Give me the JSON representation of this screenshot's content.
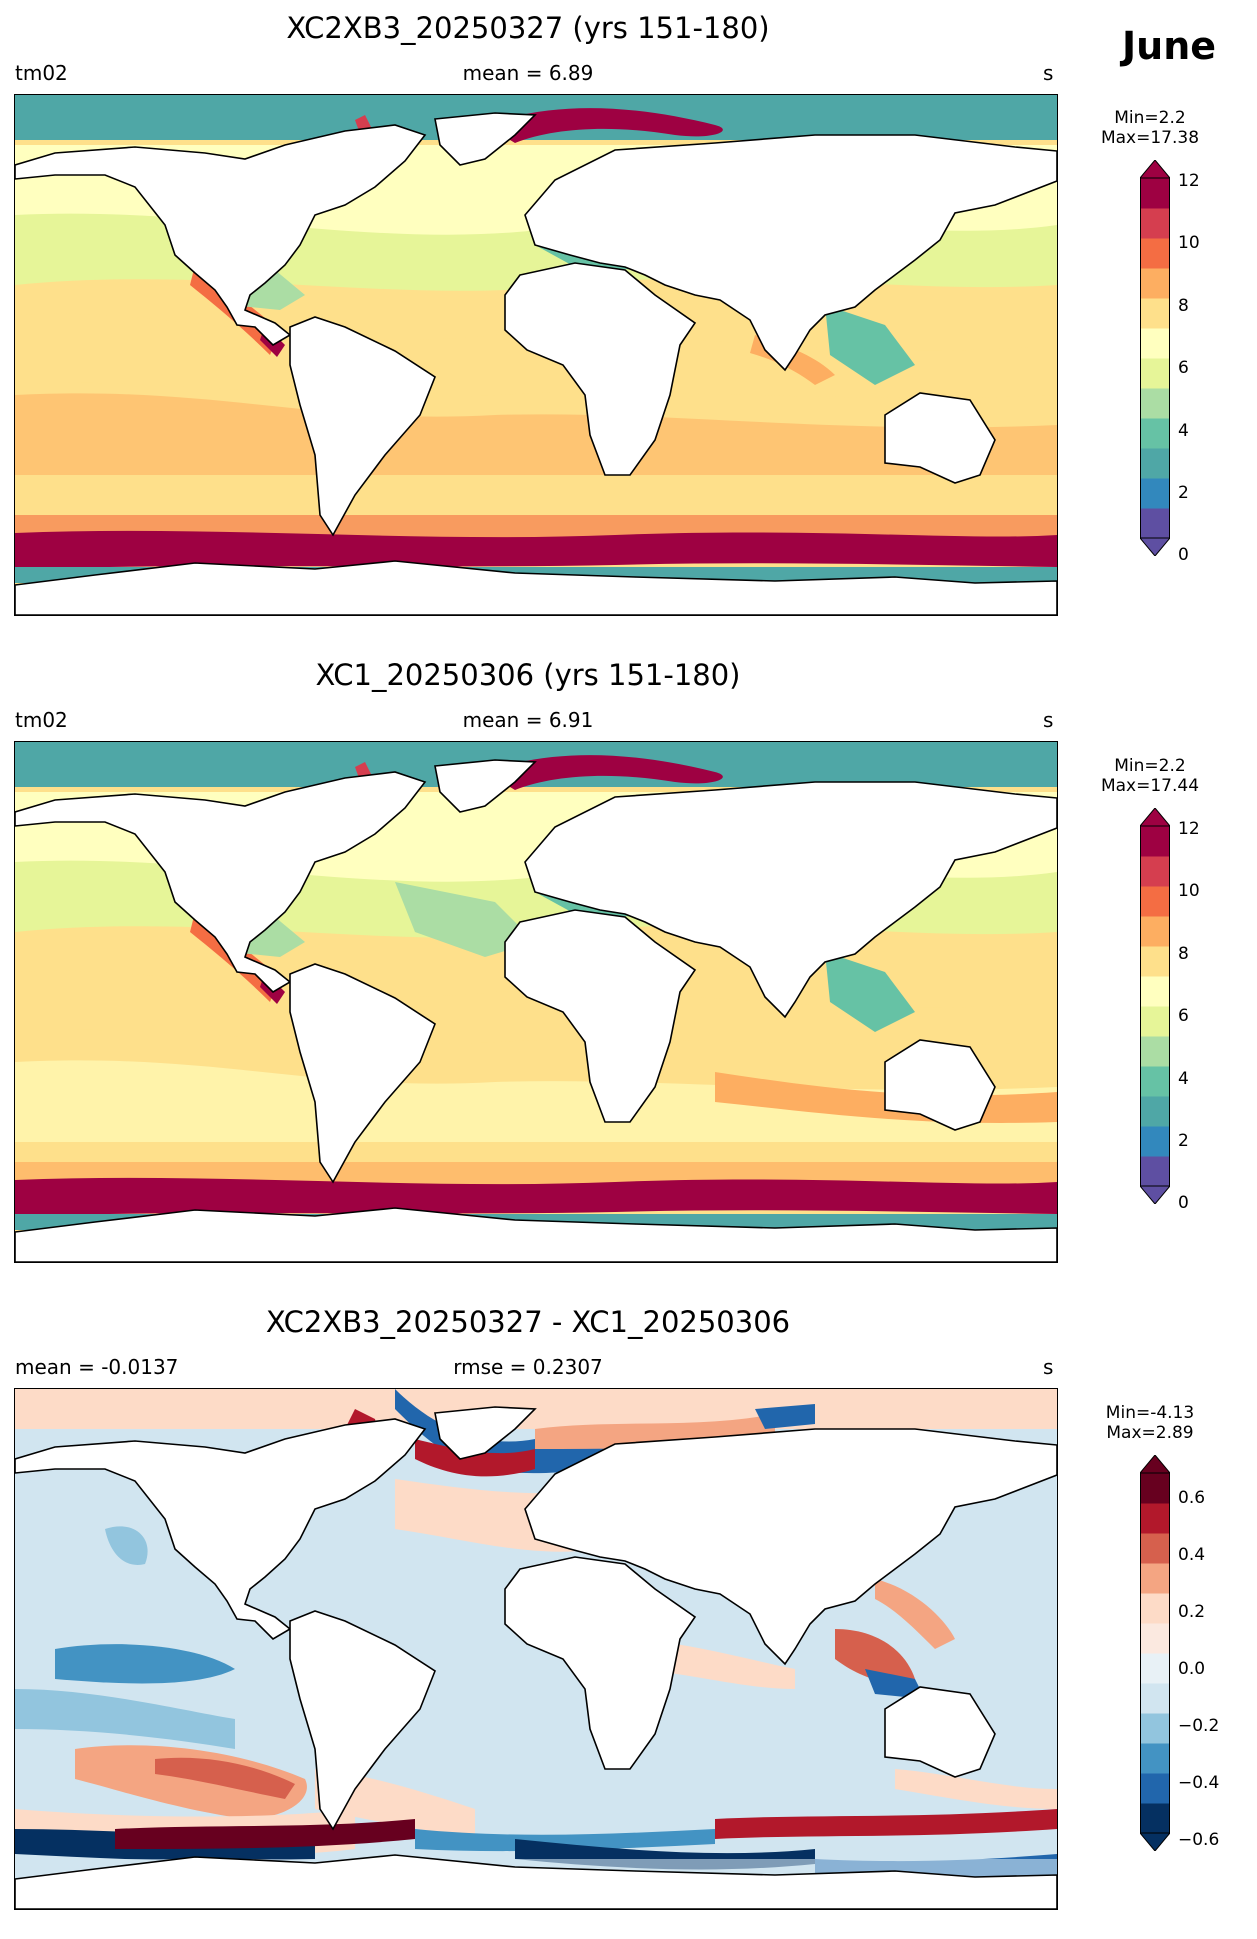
{
  "month": "June",
  "panels": [
    {
      "title": "XC2XB3_20250327 (yrs 151-180)",
      "left_label": "tm02",
      "center_label": "mean = 6.89",
      "right_label": "s",
      "min_label": "Min=2.2",
      "max_label": "Max=17.38",
      "colorbar_ticks": [
        "0",
        "2",
        "4",
        "6",
        "8",
        "10",
        "12"
      ]
    },
    {
      "title": "XC1_20250306 (yrs 151-180)",
      "left_label": "tm02",
      "center_label": "mean = 6.91",
      "right_label": "s",
      "min_label": "Min=2.2",
      "max_label": "Max=17.44",
      "colorbar_ticks": [
        "0",
        "2",
        "4",
        "6",
        "8",
        "10",
        "12"
      ]
    },
    {
      "title": "XC2XB3_20250327 - XC1_20250306",
      "left_label": "mean = -0.0137",
      "center_label": "rmse = 0.2307",
      "right_label": "s",
      "min_label": "Min=-4.13",
      "max_label": "Max=2.89",
      "colorbar_ticks": [
        "0.6",
        "0.4",
        "0.2",
        "0.0",
        "−0.2",
        "−0.4",
        "−0.6"
      ]
    }
  ],
  "colors": {
    "seq": [
      "#5e4fa2",
      "#3288bd",
      "#4fa7a6",
      "#66c2a5",
      "#abdda4",
      "#e6f598",
      "#ffffbf",
      "#fee08b",
      "#fdae61",
      "#f46d43",
      "#d53e4f",
      "#9e0142"
    ],
    "div": [
      "#053061",
      "#2166ac",
      "#4393c3",
      "#92c5de",
      "#d1e5f0",
      "#e8f1f6",
      "#fbe9e0",
      "#fddbc7",
      "#f4a582",
      "#d6604d",
      "#b2182b",
      "#67001f"
    ]
  }
}
